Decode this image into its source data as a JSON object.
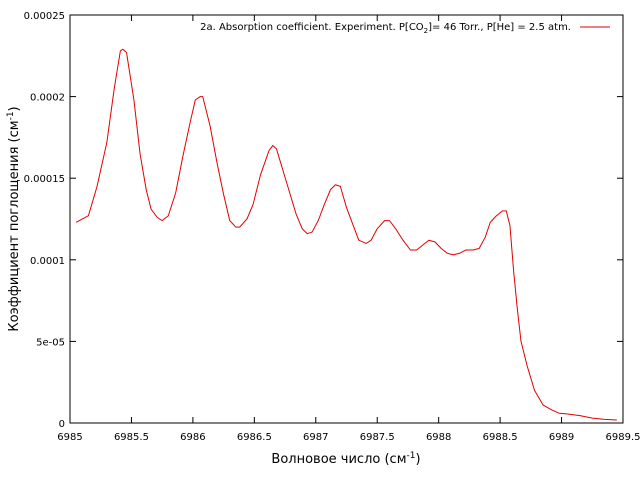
{
  "chart_data": {
    "type": "line",
    "xlabel": {
      "main": "Волновое число (см",
      "sup": "-1",
      "tail": ")"
    },
    "ylabel": {
      "main": "Коэффициент поглощения (см",
      "sup": "-1",
      "tail": ")"
    },
    "legend": {
      "placement": "top-right",
      "part1": "2a. Absorption coefficient. Experiment. P[CO",
      "sub": "2",
      "part2": "]= 46 Torr., P[He] = 2.5 atm."
    },
    "xlim": [
      6985,
      6989.5
    ],
    "ylim": [
      0,
      0.00025
    ],
    "xticks": [
      {
        "v": 6985,
        "label": "6985"
      },
      {
        "v": 6985.5,
        "label": "6985.5"
      },
      {
        "v": 6986,
        "label": "6986"
      },
      {
        "v": 6986.5,
        "label": "6986.5"
      },
      {
        "v": 6987,
        "label": "6987"
      },
      {
        "v": 6987.5,
        "label": "6987.5"
      },
      {
        "v": 6988,
        "label": "6988"
      },
      {
        "v": 6988.5,
        "label": "6988.5"
      },
      {
        "v": 6989,
        "label": "6989"
      },
      {
        "v": 6989.5,
        "label": "6989.5"
      }
    ],
    "yticks": [
      {
        "v": 0,
        "label": "0"
      },
      {
        "v": 5e-05,
        "label": "5e-05"
      },
      {
        "v": 0.0001,
        "label": "0.0001"
      },
      {
        "v": 0.00015,
        "label": "0.00015"
      },
      {
        "v": 0.0002,
        "label": "0.0002"
      },
      {
        "v": 0.00025,
        "label": "0.00025"
      }
    ],
    "grid": false,
    "series": [
      {
        "color": "#e00000",
        "points": [
          [
            6985.05,
            0.000123
          ],
          [
            6985.15,
            0.000127
          ],
          [
            6985.22,
            0.000145
          ],
          [
            6985.3,
            0.000172
          ],
          [
            6985.36,
            0.000205
          ],
          [
            6985.41,
            0.000228
          ],
          [
            6985.43,
            0.000229
          ],
          [
            6985.46,
            0.000227
          ],
          [
            6985.52,
            0.000198
          ],
          [
            6985.57,
            0.000165
          ],
          [
            6985.62,
            0.000143
          ],
          [
            6985.66,
            0.000131
          ],
          [
            6985.71,
            0.000126
          ],
          [
            6985.75,
            0.000124
          ],
          [
            6985.8,
            0.000127
          ],
          [
            6985.86,
            0.000141
          ],
          [
            6985.92,
            0.000164
          ],
          [
            6985.98,
            0.000185
          ],
          [
            6986.02,
            0.000198
          ],
          [
            6986.06,
            0.0002
          ],
          [
            6986.08,
            0.0002
          ],
          [
            6986.14,
            0.000182
          ],
          [
            6986.2,
            0.000158
          ],
          [
            6986.25,
            0.00014
          ],
          [
            6986.3,
            0.000124
          ],
          [
            6986.35,
            0.00012
          ],
          [
            6986.38,
            0.00012
          ],
          [
            6986.44,
            0.000125
          ],
          [
            6986.49,
            0.000134
          ],
          [
            6986.55,
            0.000152
          ],
          [
            6986.62,
            0.000167
          ],
          [
            6986.65,
            0.00017
          ],
          [
            6986.68,
            0.000168
          ],
          [
            6986.72,
            0.000158
          ],
          [
            6986.78,
            0.000143
          ],
          [
            6986.84,
            0.000128
          ],
          [
            6986.89,
            0.000119
          ],
          [
            6986.93,
            0.000116
          ],
          [
            6986.97,
            0.000117
          ],
          [
            6987.02,
            0.000124
          ],
          [
            6987.07,
            0.000134
          ],
          [
            6987.12,
            0.000143
          ],
          [
            6987.16,
            0.000146
          ],
          [
            6987.2,
            0.000145
          ],
          [
            6987.25,
            0.000132
          ],
          [
            6987.3,
            0.000122
          ],
          [
            6987.35,
            0.000112
          ],
          [
            6987.41,
            0.00011
          ],
          [
            6987.45,
            0.000112
          ],
          [
            6987.5,
            0.000119
          ],
          [
            6987.56,
            0.000124
          ],
          [
            6987.6,
            0.000124
          ],
          [
            6987.65,
            0.000119
          ],
          [
            6987.71,
            0.000112
          ],
          [
            6987.77,
            0.000106
          ],
          [
            6987.82,
            0.000106
          ],
          [
            6987.87,
            0.000109
          ],
          [
            6987.92,
            0.000112
          ],
          [
            6987.97,
            0.000111
          ],
          [
            6988.02,
            0.000107
          ],
          [
            6988.07,
            0.000104
          ],
          [
            6988.12,
            0.000103
          ],
          [
            6988.17,
            0.000104
          ],
          [
            6988.22,
            0.000106
          ],
          [
            6988.28,
            0.000106
          ],
          [
            6988.33,
            0.000107
          ],
          [
            6988.38,
            0.000114
          ],
          [
            6988.42,
            0.000123
          ],
          [
            6988.47,
            0.000127
          ],
          [
            6988.52,
            0.00013
          ],
          [
            6988.55,
            0.00013
          ],
          [
            6988.58,
            0.000121
          ],
          [
            6988.61,
            9.3e-05
          ],
          [
            6988.64,
            7e-05
          ],
          [
            6988.67,
            5e-05
          ],
          [
            6988.72,
            3.5e-05
          ],
          [
            6988.78,
            2e-05
          ],
          [
            6988.85,
            1.1e-05
          ],
          [
            6988.92,
            8e-06
          ],
          [
            6988.98,
            6e-06
          ],
          [
            6989.05,
            5.5e-06
          ],
          [
            6989.15,
            4.5e-06
          ],
          [
            6989.25,
            3e-06
          ],
          [
            6989.35,
            2.2e-06
          ],
          [
            6989.45,
            1.8e-06
          ]
        ]
      }
    ]
  }
}
